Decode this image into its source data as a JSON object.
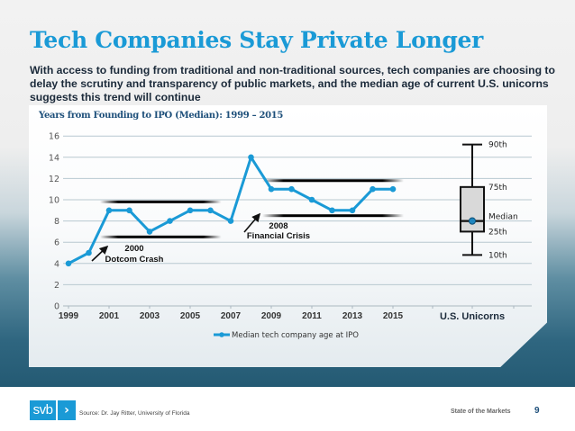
{
  "slide": {
    "title": "Tech Companies Stay Private Longer",
    "subtitle": "With access to funding from traditional and non-traditional sources, tech companies are choosing to delay the scrutiny and transparency of public markets, and the median age of current U.S. unicorns suggests this trend will continue",
    "footer": {
      "logo_text": "svb",
      "logo_chevron": "›",
      "source": "Source: Dr. Jay Ritter, University of Florida",
      "section_label": "State of the Markets",
      "page_number": "9"
    }
  },
  "colors": {
    "title": "#1a9ad6",
    "series": "#1a9ad6",
    "chart_title": "#1d4f7a",
    "gridline": "#b8c8d0"
  },
  "chart_data": {
    "type": "line",
    "title": "Years from Founding to IPO (Median): 1999 – 2015",
    "xlabel": "",
    "ylabel": "",
    "ylim": [
      0,
      16
    ],
    "yticks": [
      "0",
      "2",
      "4",
      "6",
      "8",
      "10",
      "12",
      "14",
      "16"
    ],
    "xticks": [
      "1999",
      "2001",
      "2003",
      "2005",
      "2007",
      "2009",
      "2011",
      "2013",
      "2015"
    ],
    "grid": true,
    "legend_position": "bottom-center",
    "x": [
      1999,
      2000,
      2001,
      2002,
      2003,
      2004,
      2005,
      2006,
      2007,
      2008,
      2009,
      2010,
      2011,
      2012,
      2013,
      2014,
      2015
    ],
    "series": [
      {
        "name": "Median tech company age at IPO",
        "values": [
          4,
          5,
          9,
          9,
          7,
          8,
          9,
          9,
          8,
          14,
          11,
          11,
          10,
          9,
          9,
          11,
          11
        ]
      }
    ],
    "annotations": [
      {
        "year": "2000",
        "label": "Dotcom Crash"
      },
      {
        "year": "2008",
        "label": "Financial Crisis"
      }
    ],
    "range_bands": [
      {
        "from": 2001,
        "to": 2006,
        "upper": 9.8,
        "lower": 6.5
      },
      {
        "from": 2009,
        "to": 2015,
        "upper": 11.8,
        "lower": 8.5
      }
    ],
    "boxplot": {
      "category": "U.S. Unicorns",
      "p10": 4.8,
      "p25": 7.0,
      "median": 8.0,
      "p75": 11.2,
      "p90": 15.2,
      "labels": {
        "p90": "90th",
        "p75": "75th",
        "median": "Median",
        "p25": "25th",
        "p10": "10th"
      }
    }
  }
}
